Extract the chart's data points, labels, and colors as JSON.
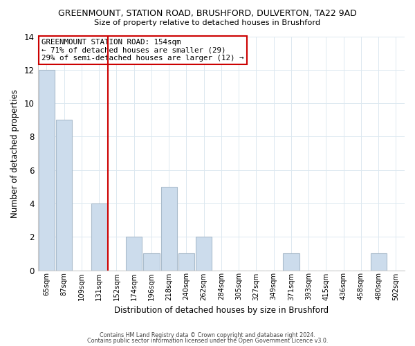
{
  "title": "GREENMOUNT, STATION ROAD, BRUSHFORD, DULVERTON, TA22 9AD",
  "subtitle": "Size of property relative to detached houses in Brushford",
  "xlabel": "Distribution of detached houses by size in Brushford",
  "ylabel": "Number of detached properties",
  "bin_labels": [
    "65sqm",
    "87sqm",
    "109sqm",
    "131sqm",
    "152sqm",
    "174sqm",
    "196sqm",
    "218sqm",
    "240sqm",
    "262sqm",
    "284sqm",
    "305sqm",
    "327sqm",
    "349sqm",
    "371sqm",
    "393sqm",
    "415sqm",
    "436sqm",
    "458sqm",
    "480sqm",
    "502sqm"
  ],
  "bar_heights": [
    12,
    9,
    0,
    4,
    0,
    2,
    1,
    5,
    1,
    2,
    0,
    0,
    0,
    0,
    1,
    0,
    0,
    0,
    0,
    1,
    0
  ],
  "bar_color": "#ccdcec",
  "bar_edge_color": "#aabccc",
  "vline_x": 3.5,
  "vline_color": "#cc0000",
  "ylim": [
    0,
    14
  ],
  "yticks": [
    0,
    2,
    4,
    6,
    8,
    10,
    12,
    14
  ],
  "annotation_title": "GREENMOUNT STATION ROAD: 154sqm",
  "annotation_line1": "← 71% of detached houses are smaller (29)",
  "annotation_line2": "29% of semi-detached houses are larger (12) →",
  "annotation_box_color": "#ffffff",
  "annotation_box_edge": "#cc0000",
  "footer1": "Contains HM Land Registry data © Crown copyright and database right 2024.",
  "footer2": "Contains public sector information licensed under the Open Government Licence v3.0.",
  "background_color": "#ffffff",
  "grid_color": "#dce8f0"
}
